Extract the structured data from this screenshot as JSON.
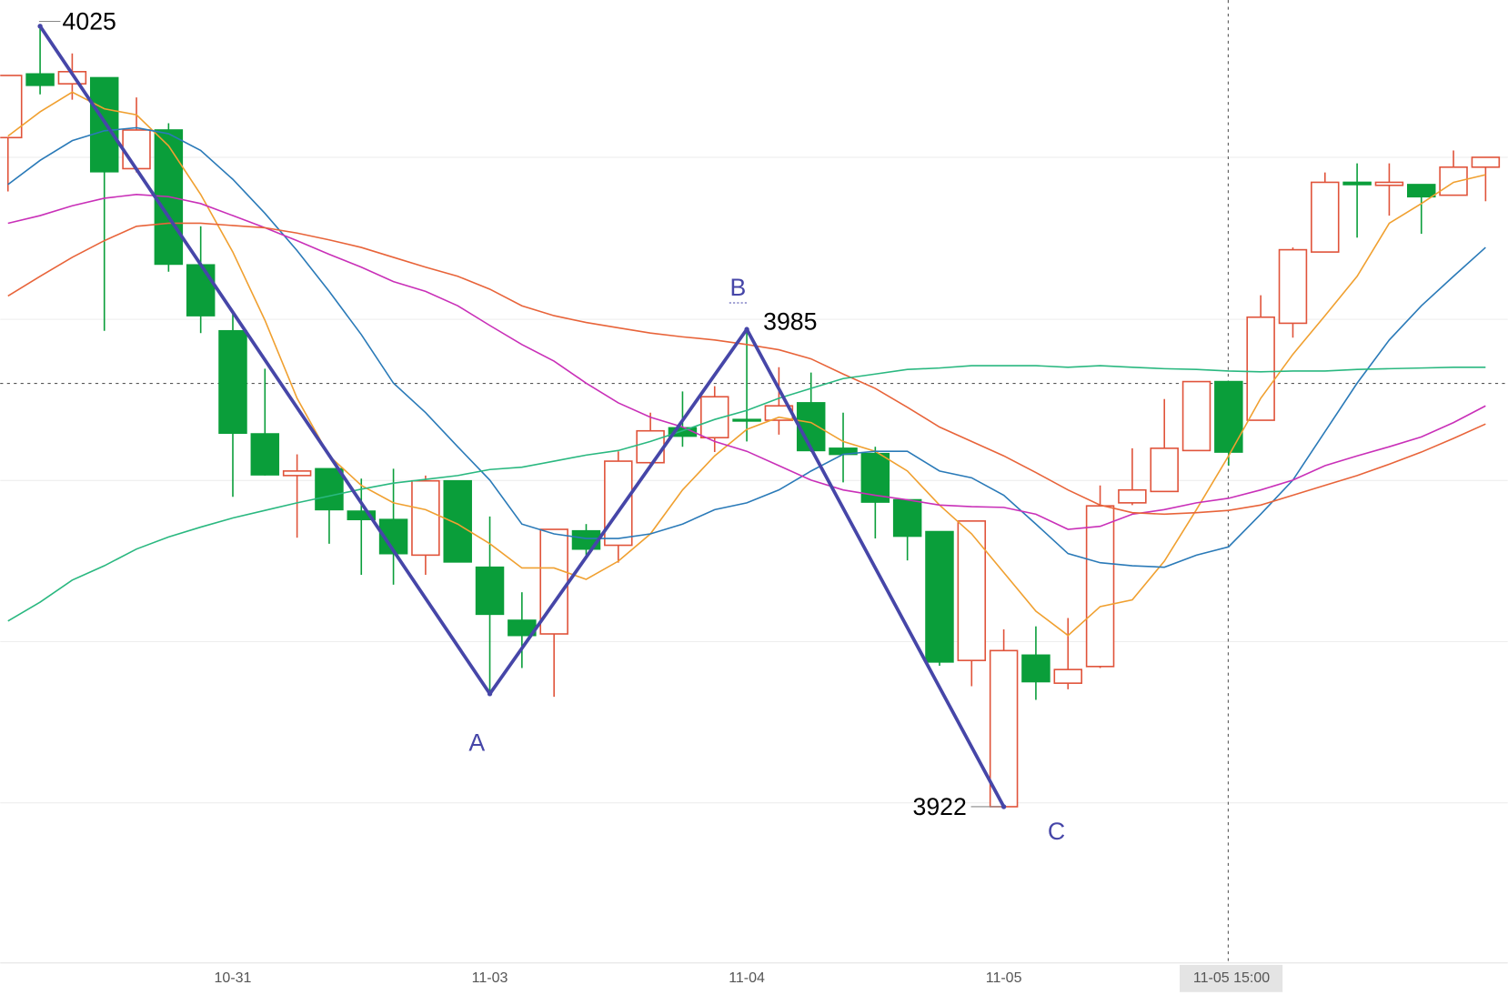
{
  "chart_data": {
    "type": "candlestick",
    "categories": [
      null,
      null,
      null,
      null,
      null,
      null,
      null,
      "10-31",
      null,
      null,
      null,
      null,
      null,
      null,
      null,
      "11-03",
      null,
      null,
      null,
      null,
      null,
      null,
      null,
      "11-04",
      null,
      null,
      null,
      null,
      null,
      null,
      null,
      "11-05",
      null,
      null,
      null,
      null,
      null,
      null,
      "11-05 15:00",
      null,
      null,
      null,
      null,
      null,
      null,
      null,
      null
    ],
    "open": [
      4010.3,
      4018.7,
      4017.4,
      4018.2,
      4006.2,
      4011.3,
      3993.5,
      3984.8,
      3971.2,
      3965.7,
      3966.6,
      3961.0,
      3959.9,
      3955.2,
      3965.0,
      3953.6,
      3946.6,
      3944.8,
      3958.4,
      3956.5,
      3967.4,
      3972.0,
      3970.7,
      3973.1,
      3973.0,
      3975.3,
      3969.3,
      3968.6,
      3962.5,
      3958.3,
      3941.3,
      3922.0,
      3942.0,
      3938.3,
      3940.5,
      3962.1,
      3963.6,
      3969.0,
      3978.1,
      3973.0,
      3985.8,
      3995.2,
      4004.4,
      4004.0,
      4004.1,
      4002.7,
      4006.4
    ],
    "high": [
      4018.5,
      4025.0,
      4021.4,
      4018.2,
      4015.6,
      4012.2,
      3998.6,
      3987.2,
      3979.8,
      3968.5,
      3966.6,
      3965.3,
      3966.6,
      3965.7,
      3965.0,
      3960.3,
      3950.3,
      3958.6,
      3959.3,
      3968.9,
      3974.0,
      3976.8,
      3977.5,
      3985.0,
      3980.0,
      3979.3,
      3974.0,
      3969.5,
      3962.5,
      3958.3,
      3959.7,
      3945.4,
      3945.8,
      3946.9,
      3964.4,
      3969.3,
      3975.8,
      3978.1,
      3978.1,
      3989.5,
      3995.8,
      4005.7,
      4006.9,
      4006.9,
      4004.1,
      4008.6,
      4007.7
    ],
    "low": [
      4003.2,
      4016.0,
      4015.3,
      3984.8,
      4005.7,
      3992.6,
      3984.5,
      3962.9,
      3965.7,
      3957.5,
      3956.7,
      3952.6,
      3951.3,
      3952.6,
      3954.3,
      3936.9,
      3940.3,
      3936.5,
      3955.2,
      3954.2,
      3967.2,
      3969.5,
      3968.8,
      3970.2,
      3971.1,
      3968.8,
      3964.8,
      3957.4,
      3954.5,
      3940.6,
      3937.9,
      3922.0,
      3936.1,
      3937.5,
      3940.3,
      3961.8,
      3963.6,
      3969.0,
      3967.0,
      3973.0,
      3983.9,
      3995.2,
      3997.1,
      4000.0,
      3997.6,
      4002.7,
      4001.9
    ],
    "close": [
      4018.5,
      4017.2,
      4019.0,
      4005.8,
      4011.3,
      3993.6,
      3986.8,
      3971.3,
      3965.8,
      3966.3,
      3961.2,
      3959.9,
      3955.4,
      3965.0,
      3954.3,
      3947.4,
      3944.6,
      3958.6,
      3956.0,
      3967.6,
      3971.6,
      3970.9,
      3976.1,
      3972.9,
      3974.9,
      3969.0,
      3968.5,
      3962.2,
      3957.7,
      3941.1,
      3959.7,
      3942.6,
      3938.5,
      3940.1,
      3961.7,
      3963.8,
      3969.3,
      3978.1,
      3968.8,
      3986.6,
      3995.5,
      4004.4,
      4004.1,
      4004.4,
      4002.5,
      4006.4,
      4007.7
    ],
    "up_color": "#e0533a",
    "down_color": "#0a9e3a",
    "series": [
      {
        "color": "#f0a030",
        "values": [
          4010.5,
          4013.7,
          4016.3,
          4014.1,
          4013.3,
          4009.2,
          4002.8,
          3995.2,
          3986.2,
          3975.9,
          3968.3,
          3964.4,
          3962.1,
          3961.2,
          3959.3,
          3956.7,
          3953.5,
          3953.5,
          3952.0,
          3954.4,
          3958.0,
          3963.8,
          3968.3,
          3971.8,
          3973.4,
          3972.7,
          3970.2,
          3968.9,
          3966.3,
          3961.8,
          3958.0,
          3952.9,
          3947.8,
          3944.6,
          3948.4,
          3949.3,
          3954.4,
          3961.2,
          3968.3,
          3975.9,
          3981.7,
          3986.8,
          3992.0,
          3999.0,
          4001.6,
          4004.4,
          4005.4
        ]
      },
      {
        "color": "#2a7ab8",
        "values": [
          4004.1,
          4007.3,
          4009.9,
          4011.2,
          4011.6,
          4010.8,
          4008.6,
          4004.8,
          4000.3,
          3995.4,
          3990.0,
          3984.3,
          3977.9,
          3974.0,
          3969.5,
          3965.1,
          3959.3,
          3958.0,
          3957.4,
          3957.4,
          3958.0,
          3959.3,
          3961.2,
          3962.1,
          3963.8,
          3966.3,
          3968.5,
          3968.9,
          3968.9,
          3966.3,
          3965.4,
          3963.1,
          3959.3,
          3955.4,
          3954.2,
          3953.8,
          3953.6,
          3955.2,
          3956.3,
          3960.6,
          3965.1,
          3971.5,
          3977.9,
          3983.6,
          3988.1,
          3992.0,
          3995.8
        ]
      },
      {
        "color": "#c930b8",
        "values": [
          3999.0,
          4000.0,
          4001.3,
          4002.3,
          4002.8,
          4002.5,
          4001.6,
          4000.0,
          3998.4,
          3996.7,
          3994.9,
          3993.2,
          3991.3,
          3990.0,
          3988.1,
          3985.5,
          3983.0,
          3980.8,
          3977.9,
          3975.3,
          3973.4,
          3972.1,
          3970.2,
          3968.9,
          3967.0,
          3965.1,
          3963.8,
          3963.1,
          3962.5,
          3961.8,
          3961.6,
          3961.5,
          3960.6,
          3958.6,
          3959.0,
          3960.6,
          3961.2,
          3962.1,
          3962.7,
          3963.8,
          3965.1,
          3967.0,
          3968.3,
          3969.5,
          3970.8,
          3972.7,
          3974.9
        ]
      },
      {
        "color": "#e8643a",
        "values": [
          3989.4,
          3992.0,
          3994.5,
          3996.7,
          3998.6,
          3999.0,
          3999.0,
          3998.7,
          3998.4,
          3997.7,
          3996.8,
          3995.8,
          3994.5,
          3993.2,
          3992.0,
          3990.3,
          3988.1,
          3986.8,
          3985.9,
          3985.2,
          3984.5,
          3984.0,
          3983.6,
          3983.0,
          3982.3,
          3981.1,
          3979.1,
          3977.2,
          3974.7,
          3972.1,
          3970.2,
          3968.3,
          3966.1,
          3963.8,
          3961.8,
          3960.8,
          3960.6,
          3960.8,
          3961.1,
          3961.8,
          3963.1,
          3964.4,
          3965.7,
          3967.2,
          3968.8,
          3970.6,
          3972.5
        ]
      },
      {
        "color": "#2ab880",
        "values": [
          3946.5,
          3949.0,
          3951.9,
          3953.8,
          3956.0,
          3957.6,
          3958.9,
          3960.1,
          3961.1,
          3962.1,
          3963.0,
          3963.9,
          3964.7,
          3965.2,
          3965.7,
          3966.5,
          3966.8,
          3967.6,
          3968.4,
          3969.0,
          3970.2,
          3971.6,
          3973.1,
          3974.3,
          3975.9,
          3977.2,
          3978.5,
          3979.1,
          3979.7,
          3979.9,
          3980.2,
          3980.2,
          3980.2,
          3980.0,
          3980.2,
          3980.0,
          3979.8,
          3979.7,
          3979.5,
          3979.4,
          3979.5,
          3979.5,
          3979.7,
          3979.8,
          3979.9,
          3980.0,
          3980.0
        ]
      }
    ],
    "pattern_color": "#4646a8",
    "annotations": [
      "4025",
      "A",
      "B",
      "3985",
      "3922",
      "C"
    ],
    "ylim": [
      3900,
      4030
    ]
  }
}
